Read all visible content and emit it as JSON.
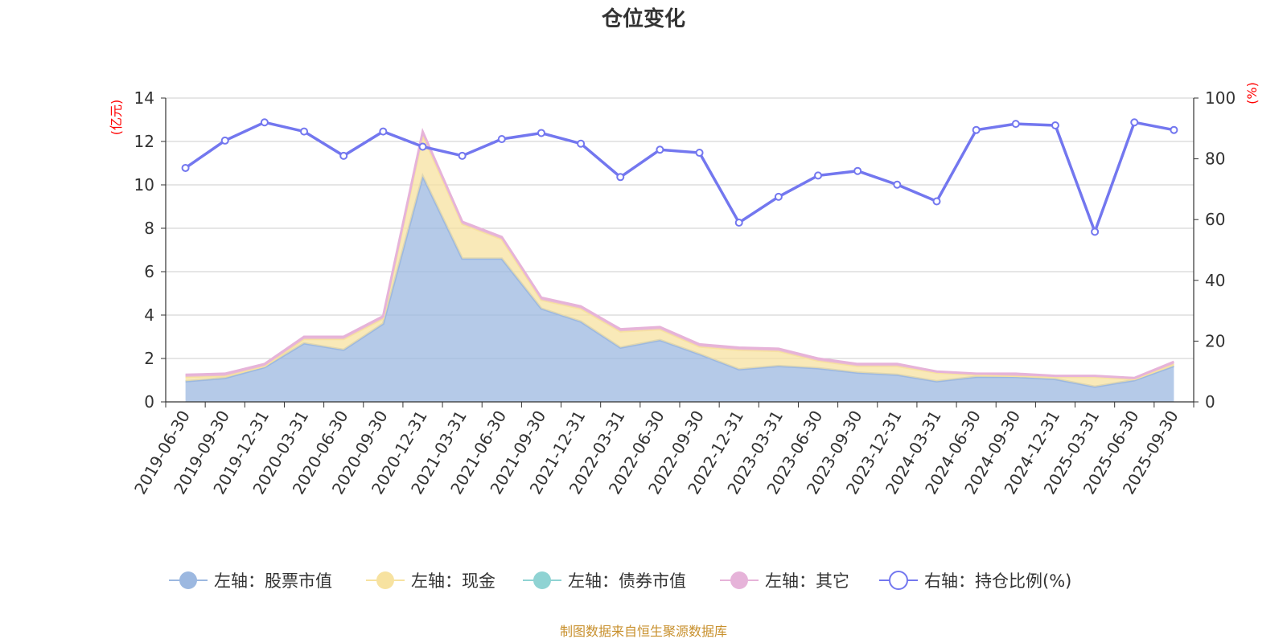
{
  "chart_data": {
    "type": "area",
    "title": "仓位变化",
    "left_axis": {
      "unit_label": "(亿元)",
      "ylim": [
        0,
        14
      ],
      "ticks": [
        "0",
        "2",
        "4",
        "6",
        "8",
        "10",
        "12",
        "14"
      ]
    },
    "right_axis": {
      "unit_label": "(%)",
      "ylim": [
        0,
        100
      ],
      "ticks": [
        "0",
        "20",
        "40",
        "60",
        "80",
        "100"
      ]
    },
    "categories": [
      "2019-06-30",
      "2019-09-30",
      "2019-12-31",
      "2020-03-31",
      "2020-06-30",
      "2020-09-30",
      "2020-12-31",
      "2021-03-31",
      "2021-06-30",
      "2021-09-30",
      "2021-12-31",
      "2022-03-31",
      "2022-06-30",
      "2022-09-30",
      "2022-12-31",
      "2023-03-31",
      "2023-06-30",
      "2023-09-30",
      "2023-12-31",
      "2024-03-31",
      "2024-06-30",
      "2024-09-30",
      "2024-12-31",
      "2025-03-31",
      "2025-06-30",
      "2025-09-30"
    ],
    "series": [
      {
        "name": "左轴：股票市值",
        "axis": "left",
        "stack": true,
        "color": "#9cb8e0",
        "values": [
          0.95,
          1.1,
          1.6,
          2.7,
          2.4,
          3.6,
          10.4,
          6.6,
          6.6,
          4.3,
          3.7,
          2.5,
          2.85,
          2.2,
          1.5,
          1.65,
          1.55,
          1.35,
          1.25,
          0.95,
          1.15,
          1.15,
          1.05,
          0.7,
          1.0,
          1.65
        ]
      },
      {
        "name": "左轴：现金",
        "axis": "left",
        "stack": true,
        "color": "#f7e2a0",
        "values": [
          0.2,
          0.1,
          0.05,
          0.2,
          0.5,
          0.25,
          1.9,
          1.6,
          0.9,
          0.4,
          0.6,
          0.75,
          0.5,
          0.35,
          0.9,
          0.7,
          0.35,
          0.3,
          0.4,
          0.4,
          0.1,
          0.05,
          0.1,
          0.45,
          0.05,
          0.1
        ]
      },
      {
        "name": "左轴：债券市值",
        "axis": "left",
        "stack": true,
        "color": "#8fd3d3",
        "values": [
          0,
          0,
          0,
          0,
          0,
          0,
          0,
          0,
          0,
          0,
          0,
          0,
          0,
          0,
          0,
          0,
          0,
          0,
          0,
          0,
          0,
          0,
          0,
          0,
          0,
          0
        ]
      },
      {
        "name": "左轴：其它",
        "axis": "left",
        "stack": true,
        "color": "#e6b3d9",
        "values": [
          0.1,
          0.1,
          0.1,
          0.1,
          0.1,
          0.1,
          0.15,
          0.1,
          0.1,
          0.1,
          0.1,
          0.1,
          0.1,
          0.1,
          0.1,
          0.1,
          0.1,
          0.1,
          0.1,
          0.05,
          0.05,
          0.1,
          0.05,
          0.05,
          0.05,
          0.1
        ]
      },
      {
        "name": "右轴：持仓比例(%)",
        "axis": "right",
        "type": "line",
        "color": "#7377ef",
        "values": [
          77,
          86,
          92,
          89,
          81,
          89,
          84,
          81,
          86.5,
          88.5,
          85,
          74,
          83,
          82,
          59,
          67.5,
          74.5,
          76,
          71.5,
          66,
          89.5,
          91.5,
          91,
          56,
          92,
          89.5
        ]
      }
    ]
  },
  "source_note": "制图数据来自恒生聚源数据库"
}
